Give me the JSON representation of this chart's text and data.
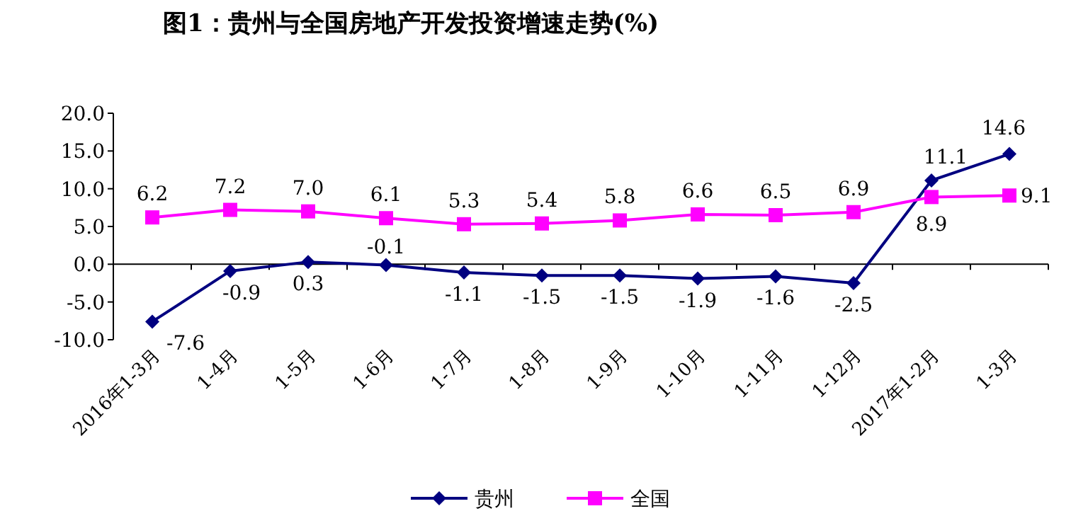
{
  "chart_data": {
    "type": "line",
    "title": "图1：贵州与全国房地产开发投资增速走势(%)",
    "categories": [
      "2016年1-3月",
      "1-4月",
      "1-5月",
      "1-6月",
      "1-7月",
      "1-8月",
      "1-9月",
      "1-10月",
      "1-11月",
      "1-12月",
      "2017年1-2月",
      "1-3月"
    ],
    "series": [
      {
        "name": "贵州",
        "color": "#000080",
        "marker": "diamond",
        "values": [
          -7.6,
          -0.9,
          0.3,
          -0.1,
          -1.1,
          -1.5,
          -1.5,
          -1.9,
          -1.6,
          -2.5,
          11.1,
          14.6
        ],
        "value_labels": [
          "-7.6",
          "-0.9",
          "0.3",
          "-0.1",
          "-1.1",
          "-1.5",
          "-1.5",
          "-1.9",
          "-1.6",
          "-2.5",
          "11.1",
          "14.6"
        ]
      },
      {
        "name": "全国",
        "color": "#ff00ff",
        "marker": "square",
        "values": [
          6.2,
          7.2,
          7.0,
          6.1,
          5.3,
          5.4,
          5.8,
          6.6,
          6.5,
          6.9,
          8.9,
          9.1
        ],
        "value_labels": [
          "6.2",
          "7.2",
          "7.0",
          "6.1",
          "5.3",
          "5.4",
          "5.8",
          "6.6",
          "6.5",
          "6.9",
          "8.9",
          "9.1"
        ]
      }
    ],
    "ylim": [
      -10,
      20
    ],
    "yticks": [
      {
        "value": -10,
        "label": "-10.0"
      },
      {
        "value": -5,
        "label": "-5.0"
      },
      {
        "value": 0,
        "label": "0.0"
      },
      {
        "value": 5,
        "label": "5.0"
      },
      {
        "value": 10,
        "label": "10.0"
      },
      {
        "value": 15,
        "label": "15.0"
      },
      {
        "value": 20,
        "label": "20.0"
      }
    ],
    "legend": "bottom"
  }
}
